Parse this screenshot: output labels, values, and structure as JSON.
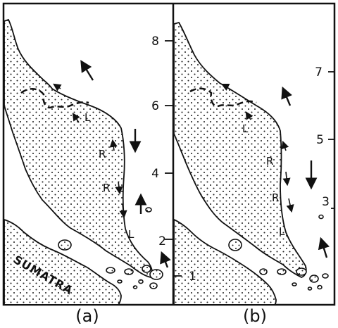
{
  "panels": {
    "a": {
      "caption": "(a)",
      "region_label": "SUMATRA",
      "current_labels": [
        "L",
        "R",
        "R",
        "L"
      ],
      "scale_ticks": [
        "8",
        "6",
        "4",
        "2"
      ]
    },
    "b": {
      "caption": "(b)",
      "current_labels": [
        "L",
        "R",
        "R",
        "L"
      ],
      "scale_ticks": [
        "7",
        "5",
        "3",
        "1"
      ]
    }
  },
  "colors": {
    "ink": "#111111",
    "land_fill": "#ffffff",
    "stipple": "#222222"
  }
}
